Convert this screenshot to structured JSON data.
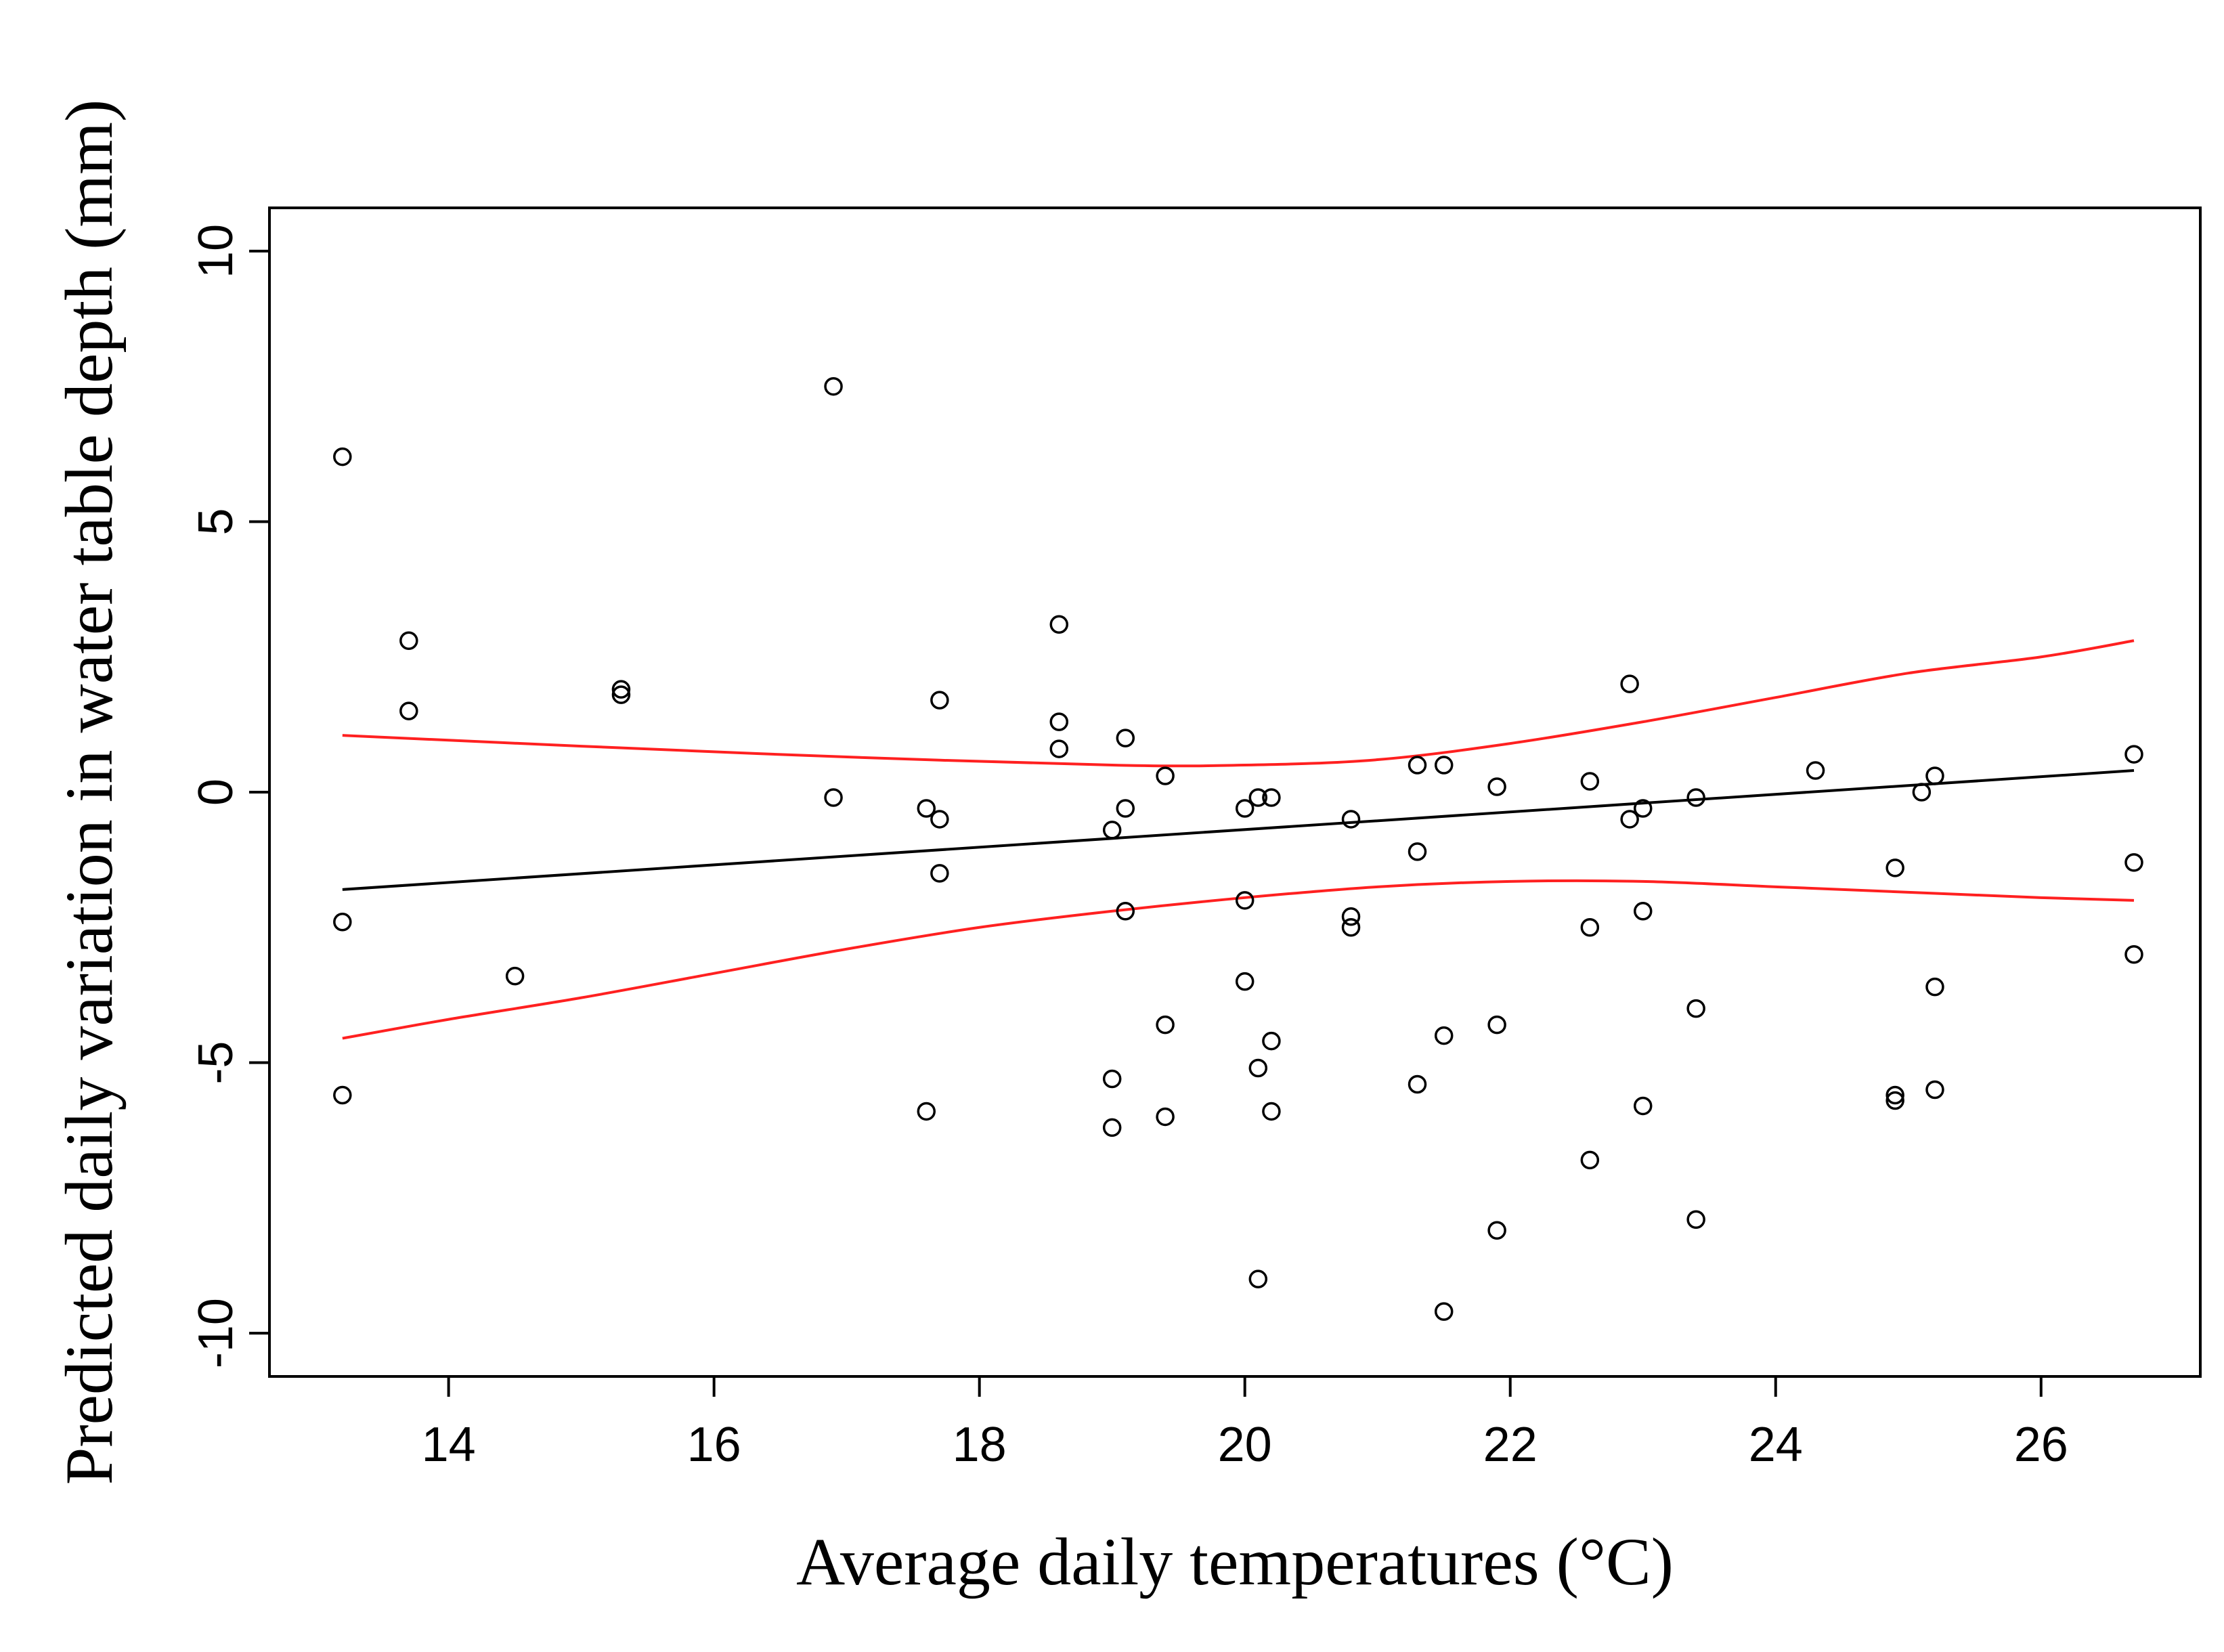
{
  "chart_data": {
    "type": "scatter",
    "title": "",
    "xlabel": "Average daily temperatures (°C)",
    "ylabel": "Predicted daily variation in water table depth (mm)",
    "xlim": [
      12.65,
      27.2
    ],
    "ylim": [
      -10.8,
      10.8
    ],
    "xticks": [
      14,
      16,
      18,
      20,
      22,
      24,
      26
    ],
    "yticks": [
      -10,
      -5,
      0,
      5,
      10
    ],
    "grid": false,
    "series": [
      {
        "name": "observations",
        "style": "open-circle",
        "points": [
          [
            13.2,
            6.2
          ],
          [
            13.2,
            -2.4
          ],
          [
            13.2,
            -5.6
          ],
          [
            13.7,
            2.8
          ],
          [
            13.7,
            1.5
          ],
          [
            14.5,
            -3.4
          ],
          [
            15.3,
            1.9
          ],
          [
            15.3,
            1.8
          ],
          [
            16.9,
            7.5
          ],
          [
            16.9,
            -0.1
          ],
          [
            17.6,
            -0.3
          ],
          [
            17.6,
            -5.9
          ],
          [
            17.7,
            1.7
          ],
          [
            17.7,
            -0.5
          ],
          [
            17.7,
            -1.5
          ],
          [
            18.6,
            3.1
          ],
          [
            18.6,
            1.3
          ],
          [
            18.6,
            0.8
          ],
          [
            19.0,
            -0.7
          ],
          [
            19.0,
            -5.3
          ],
          [
            19.0,
            -6.2
          ],
          [
            19.1,
            1.0
          ],
          [
            19.1,
            -0.3
          ],
          [
            19.1,
            -2.2
          ],
          [
            19.4,
            0.3
          ],
          [
            19.4,
            -4.3
          ],
          [
            19.4,
            -6.0
          ],
          [
            20.0,
            -0.3
          ],
          [
            20.0,
            -2.0
          ],
          [
            20.0,
            -3.5
          ],
          [
            20.1,
            -0.1
          ],
          [
            20.1,
            -5.1
          ],
          [
            20.1,
            -9.0
          ],
          [
            20.2,
            -0.1
          ],
          [
            20.2,
            -4.6
          ],
          [
            20.2,
            -5.9
          ],
          [
            20.8,
            -0.5
          ],
          [
            20.8,
            -2.3
          ],
          [
            20.8,
            -2.5
          ],
          [
            21.3,
            0.5
          ],
          [
            21.3,
            -1.1
          ],
          [
            21.3,
            -5.4
          ],
          [
            21.5,
            0.5
          ],
          [
            21.5,
            -4.5
          ],
          [
            21.5,
            -9.6
          ],
          [
            21.9,
            0.1
          ],
          [
            21.9,
            -4.3
          ],
          [
            21.9,
            -8.1
          ],
          [
            22.6,
            0.2
          ],
          [
            22.6,
            -2.5
          ],
          [
            22.6,
            -6.8
          ],
          [
            22.9,
            2.0
          ],
          [
            22.9,
            -0.5
          ],
          [
            23.0,
            -0.3
          ],
          [
            23.0,
            -2.2
          ],
          [
            23.0,
            -5.8
          ],
          [
            23.4,
            -0.1
          ],
          [
            23.4,
            -4.0
          ],
          [
            23.4,
            -7.9
          ],
          [
            24.3,
            0.4
          ],
          [
            24.9,
            -1.4
          ],
          [
            24.9,
            -5.6
          ],
          [
            24.9,
            -5.7
          ],
          [
            25.1,
            0.0
          ],
          [
            25.2,
            0.3
          ],
          [
            25.2,
            -3.6
          ],
          [
            25.2,
            -5.5
          ],
          [
            26.7,
            0.7
          ],
          [
            26.7,
            -1.3
          ],
          [
            26.7,
            -3.0
          ]
        ]
      },
      {
        "name": "fitted",
        "style": "line",
        "color": "#000000",
        "points": [
          [
            13.2,
            -1.8
          ],
          [
            26.7,
            0.4
          ]
        ]
      },
      {
        "name": "upper confidence band",
        "style": "line",
        "color": "#ff2020",
        "points": [
          [
            13.2,
            1.05
          ],
          [
            15,
            0.85
          ],
          [
            17,
            0.65
          ],
          [
            19,
            0.5
          ],
          [
            20,
            0.5
          ],
          [
            21,
            0.6
          ],
          [
            22,
            0.9
          ],
          [
            23,
            1.3
          ],
          [
            24,
            1.75
          ],
          [
            25,
            2.2
          ],
          [
            26,
            2.5
          ],
          [
            26.7,
            2.8
          ]
        ]
      },
      {
        "name": "lower confidence band",
        "style": "line",
        "color": "#ff2020",
        "points": [
          [
            13.2,
            -4.55
          ],
          [
            14,
            -4.2
          ],
          [
            15,
            -3.8
          ],
          [
            16,
            -3.35
          ],
          [
            17,
            -2.9
          ],
          [
            18,
            -2.5
          ],
          [
            19,
            -2.2
          ],
          [
            20,
            -1.95
          ],
          [
            21,
            -1.75
          ],
          [
            22,
            -1.65
          ],
          [
            23,
            -1.65
          ],
          [
            24,
            -1.75
          ],
          [
            25,
            -1.85
          ],
          [
            26,
            -1.95
          ],
          [
            26.7,
            -2.0
          ]
        ]
      }
    ]
  }
}
